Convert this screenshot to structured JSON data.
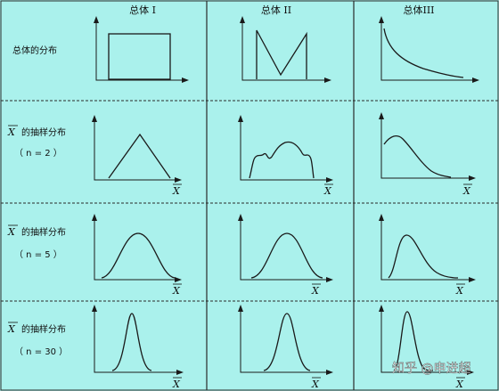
{
  "columns": [
    "总体 I",
    "总体 II",
    "总体III"
  ],
  "rows": [
    {
      "label": "总体的分布",
      "n_label": ""
    },
    {
      "label": "的抽样分布",
      "n_label": "（ n = 2 ）"
    },
    {
      "label": "的抽样分布",
      "n_label": "（ n = 5 ）"
    },
    {
      "label": "的抽样分布",
      "n_label": "（ n = 30 ）"
    }
  ],
  "xbar_symbol": "X",
  "x_axis_symbol": "X",
  "watermark": "知乎 @申进超",
  "colors": {
    "background": "#aaf1ec",
    "line": "#1a1a1a",
    "grid": "#2a2a2a"
  }
}
